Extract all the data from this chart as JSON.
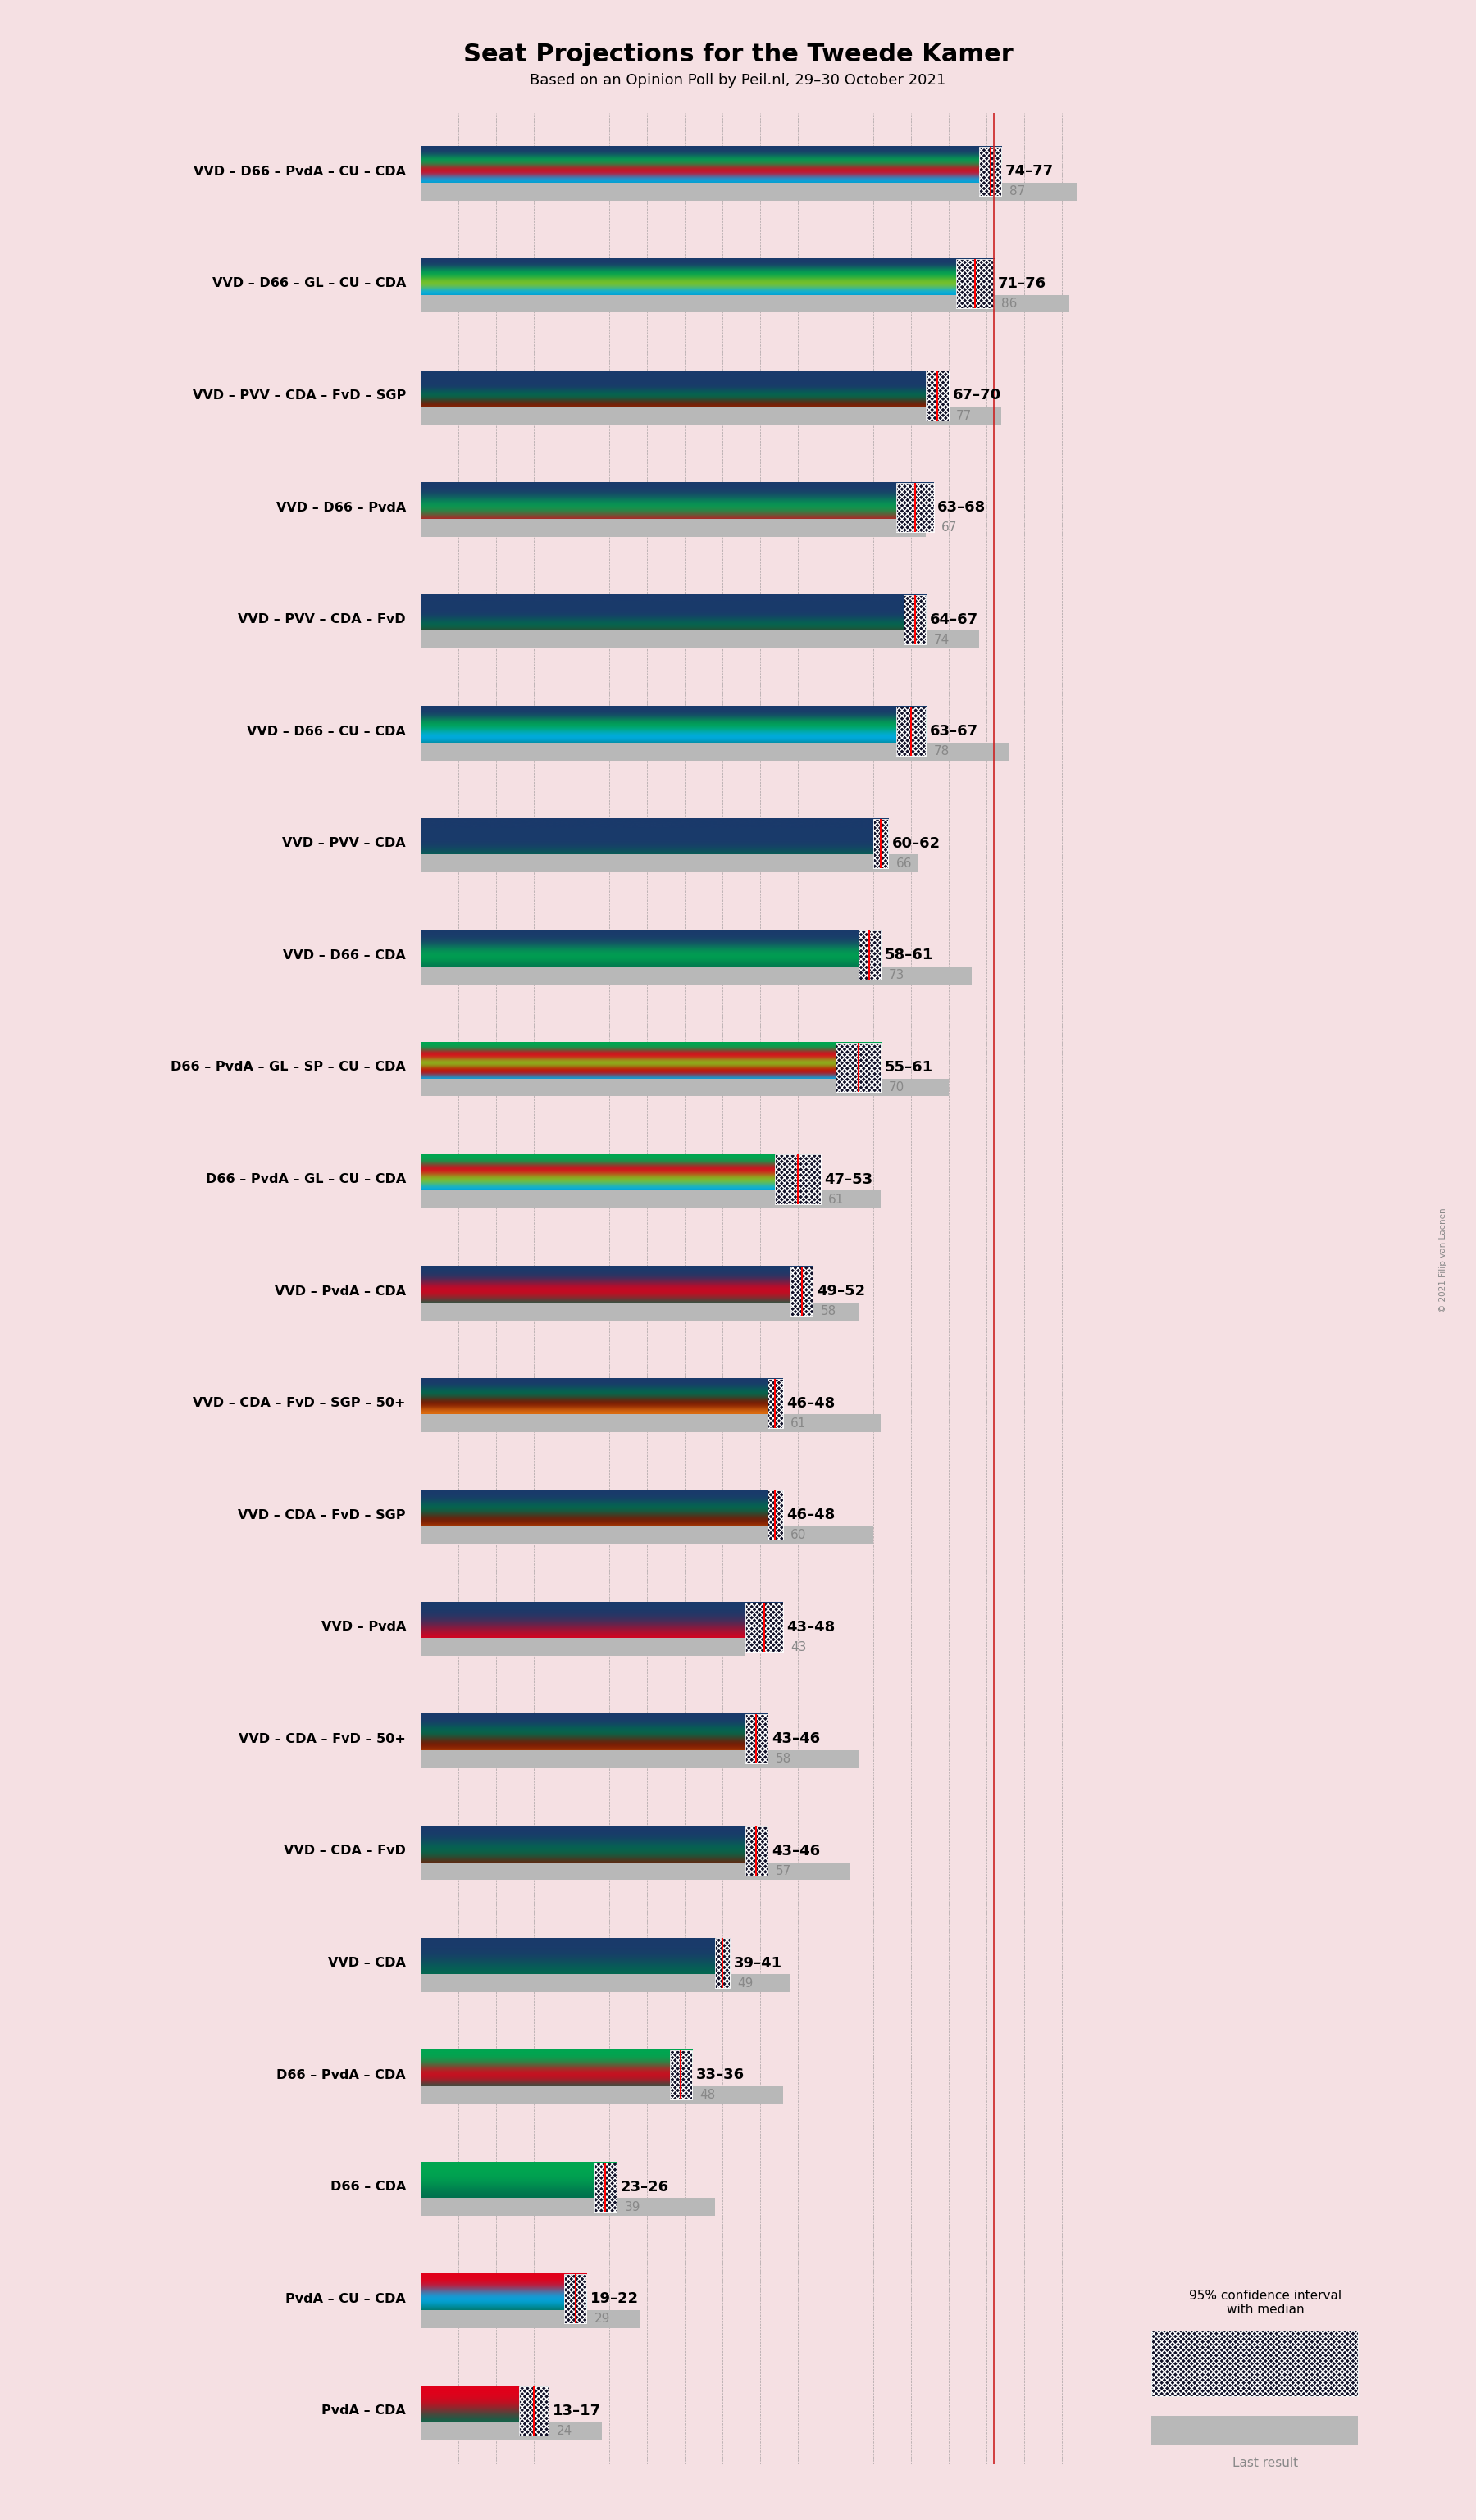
{
  "title": "Seat Projections for the Tweede Kamer",
  "subtitle": "Based on an Opinion Poll by Peil.nl, 29–30 October 2021",
  "background_color": "#f5e0e3",
  "party_colors": {
    "VVD": "#1a3a6b",
    "D66": "#00a651",
    "PvdA": "#e2001a",
    "CU": "#00aeef",
    "CDA": "#006b4e",
    "GL": "#84c31e",
    "PVV": "#1a3a6b",
    "FvD": "#7a1500",
    "SGP": "#e07010",
    "SP": "#cc0000",
    "50+": "#d06010"
  },
  "coalitions": [
    {
      "label": "VVD – D66 – PvdA – CU – CDA",
      "parties": [
        "VVD",
        "D66",
        "PvdA",
        "CU",
        "CDA"
      ],
      "seats_low": 74,
      "seats_high": 77,
      "last_result": 87
    },
    {
      "label": "VVD – D66 – GL – CU – CDA",
      "parties": [
        "VVD",
        "D66",
        "GL",
        "CU",
        "CDA"
      ],
      "seats_low": 71,
      "seats_high": 76,
      "last_result": 86
    },
    {
      "label": "VVD – PVV – CDA – FvD – SGP",
      "parties": [
        "VVD",
        "PVV",
        "CDA",
        "FvD",
        "SGP"
      ],
      "seats_low": 67,
      "seats_high": 70,
      "last_result": 77
    },
    {
      "label": "VVD – D66 – PvdA",
      "parties": [
        "VVD",
        "D66",
        "PvdA"
      ],
      "seats_low": 63,
      "seats_high": 68,
      "last_result": 67
    },
    {
      "label": "VVD – PVV – CDA – FvD",
      "parties": [
        "VVD",
        "PVV",
        "CDA",
        "FvD"
      ],
      "seats_low": 64,
      "seats_high": 67,
      "last_result": 74
    },
    {
      "label": "VVD – D66 – CU – CDA",
      "parties": [
        "VVD",
        "D66",
        "CU",
        "CDA"
      ],
      "seats_low": 63,
      "seats_high": 67,
      "last_result": 78
    },
    {
      "label": "VVD – PVV – CDA",
      "parties": [
        "VVD",
        "PVV",
        "CDA"
      ],
      "seats_low": 60,
      "seats_high": 62,
      "last_result": 66
    },
    {
      "label": "VVD – D66 – CDA",
      "parties": [
        "VVD",
        "D66",
        "CDA"
      ],
      "seats_low": 58,
      "seats_high": 61,
      "last_result": 73
    },
    {
      "label": "D66 – PvdA – GL – SP – CU – CDA",
      "parties": [
        "D66",
        "PvdA",
        "GL",
        "SP",
        "CU",
        "CDA"
      ],
      "seats_low": 55,
      "seats_high": 61,
      "last_result": 70
    },
    {
      "label": "D66 – PvdA – GL – CU – CDA",
      "parties": [
        "D66",
        "PvdA",
        "GL",
        "CU",
        "CDA"
      ],
      "seats_low": 47,
      "seats_high": 53,
      "last_result": 61
    },
    {
      "label": "VVD – PvdA – CDA",
      "parties": [
        "VVD",
        "PvdA",
        "CDA"
      ],
      "seats_low": 49,
      "seats_high": 52,
      "last_result": 58
    },
    {
      "label": "VVD – CDA – FvD – SGP – 50+",
      "parties": [
        "VVD",
        "CDA",
        "FvD",
        "SGP",
        "50+"
      ],
      "seats_low": 46,
      "seats_high": 48,
      "last_result": 61
    },
    {
      "label": "VVD – CDA – FvD – SGP",
      "parties": [
        "VVD",
        "CDA",
        "FvD",
        "SGP"
      ],
      "seats_low": 46,
      "seats_high": 48,
      "last_result": 60
    },
    {
      "label": "VVD – PvdA",
      "parties": [
        "VVD",
        "PvdA"
      ],
      "seats_low": 43,
      "seats_high": 48,
      "last_result": 43
    },
    {
      "label": "VVD – CDA – FvD – 50+",
      "parties": [
        "VVD",
        "CDA",
        "FvD",
        "50+"
      ],
      "seats_low": 43,
      "seats_high": 46,
      "last_result": 58
    },
    {
      "label": "VVD – CDA – FvD",
      "parties": [
        "VVD",
        "CDA",
        "FvD"
      ],
      "seats_low": 43,
      "seats_high": 46,
      "last_result": 57
    },
    {
      "label": "VVD – CDA",
      "parties": [
        "VVD",
        "CDA"
      ],
      "seats_low": 39,
      "seats_high": 41,
      "last_result": 49
    },
    {
      "label": "D66 – PvdA – CDA",
      "parties": [
        "D66",
        "PvdA",
        "CDA"
      ],
      "seats_low": 33,
      "seats_high": 36,
      "last_result": 48
    },
    {
      "label": "D66 – CDA",
      "parties": [
        "D66",
        "CDA"
      ],
      "seats_low": 23,
      "seats_high": 26,
      "last_result": 39
    },
    {
      "label": "PvdA – CU – CDA",
      "parties": [
        "PvdA",
        "CU",
        "CDA"
      ],
      "seats_low": 19,
      "seats_high": 22,
      "last_result": 29
    },
    {
      "label": "PvdA – CDA",
      "parties": [
        "PvdA",
        "CDA"
      ],
      "seats_low": 13,
      "seats_high": 17,
      "last_result": 24
    }
  ],
  "seats_min": 0,
  "seats_max": 90,
  "majority_line": 76,
  "copyright": "© 2021 Filip van Laenen",
  "legend_ci_text": "95% confidence interval\nwith median",
  "legend_lr_text": "Last result"
}
